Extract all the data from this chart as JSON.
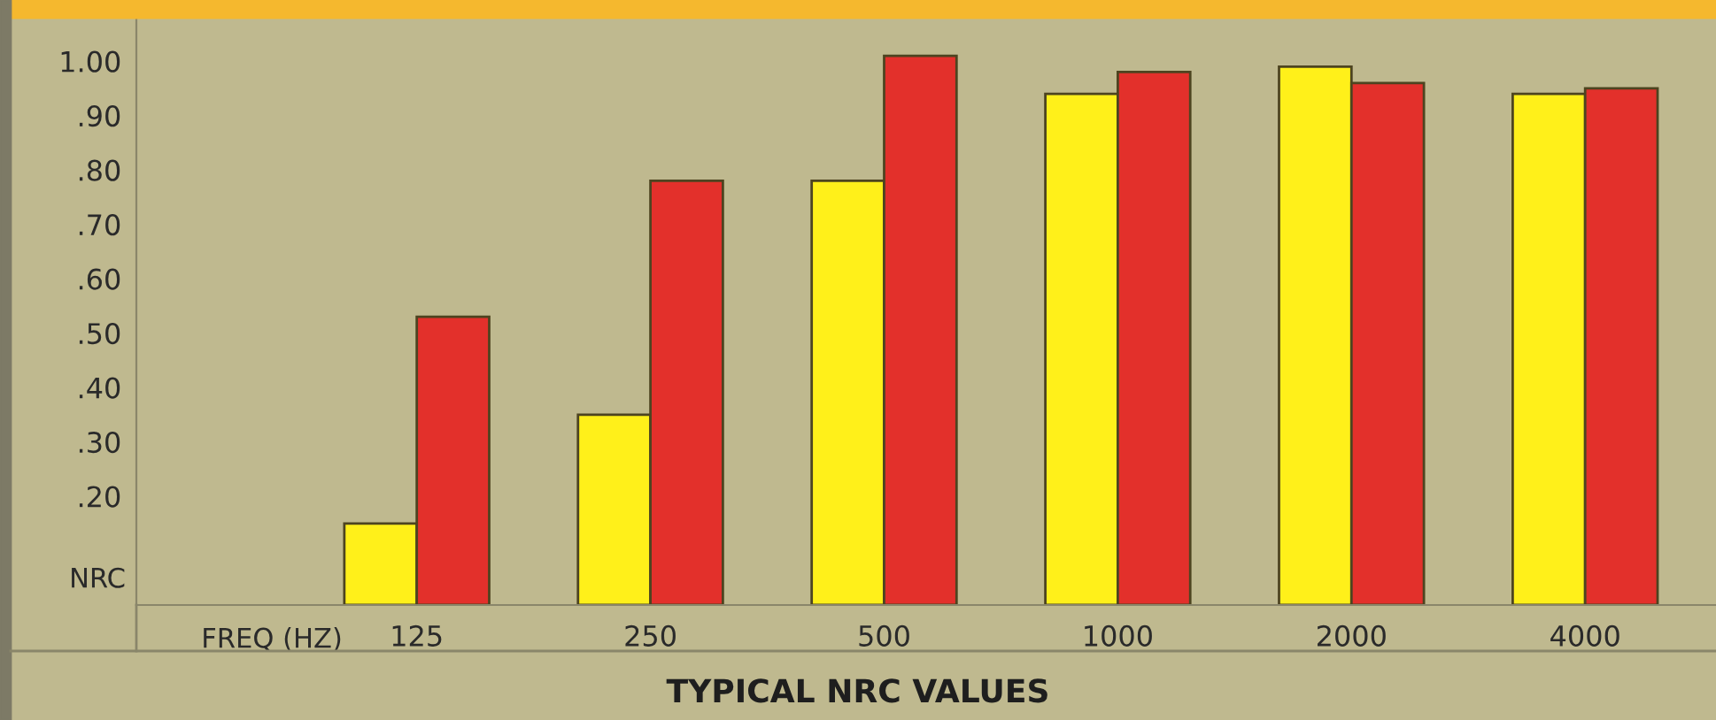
{
  "chart_data": {
    "type": "bar",
    "title": "TYPICAL NRC VALUES",
    "xlabel": "FREQ (HZ)",
    "ylabel": "NRC",
    "categories": [
      "125",
      "250",
      "500",
      "1000",
      "2000",
      "4000"
    ],
    "series": [
      {
        "color": "#fff01a",
        "values": [
          0.15,
          0.35,
          0.78,
          0.94,
          0.99,
          0.94
        ]
      },
      {
        "color": "#e3302b",
        "values": [
          0.53,
          0.78,
          1.01,
          0.98,
          0.96,
          0.95
        ]
      }
    ],
    "ylim": [
      0,
      1.08
    ],
    "yticks": [
      {
        "value": 0.2,
        "label": ".20"
      },
      {
        "value": 0.3,
        "label": ".30"
      },
      {
        "value": 0.4,
        "label": ".40"
      },
      {
        "value": 0.5,
        "label": ".50"
      },
      {
        "value": 0.6,
        "label": ".60"
      },
      {
        "value": 0.7,
        "label": ".70"
      },
      {
        "value": 0.8,
        "label": ".80"
      },
      {
        "value": 0.9,
        "label": ".90"
      },
      {
        "value": 1.0,
        "label": "1.00"
      }
    ],
    "grid": false,
    "legend": false
  }
}
